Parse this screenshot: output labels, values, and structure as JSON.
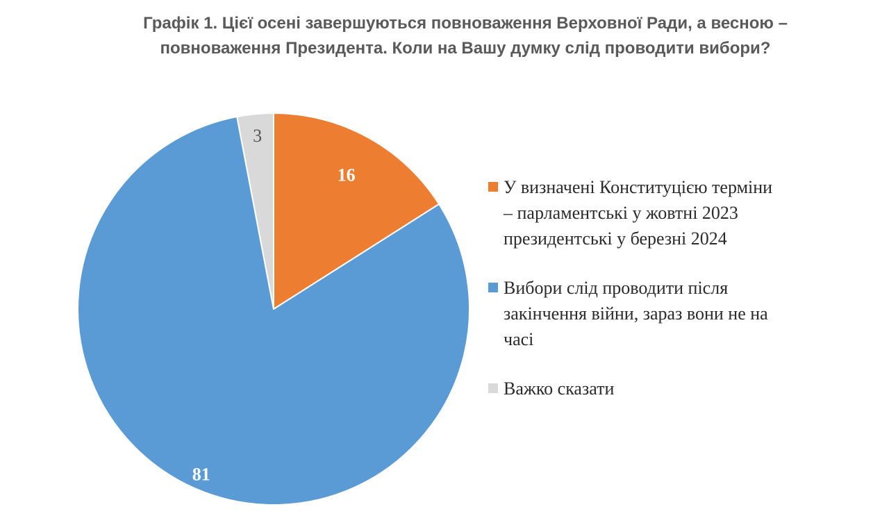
{
  "title": {
    "line1": "Графік 1. Цієї осені завершуються повноваження Верховної Ради, а весною –",
    "line2": "повноваження Президента. Коли на Вашу думку слід проводити вибори?"
  },
  "colors": {
    "orange": "#ED7D31",
    "blue": "#5B9BD5",
    "gray": "#D9D9D9"
  },
  "chart_data": {
    "type": "pie",
    "title": "Графік 1. Цієї осені завершуються повноваження Верховної Ради, а весною – повноваження Президента. Коли на Вашу думку слід проводити вибори?",
    "categories": [
      "У визначені Конституцією терміни – парламентські у жовтні 2023 президентські у березні 2024",
      "Вибори слід проводити після закінчення війни, зараз вони не на часі",
      "Важко сказати"
    ],
    "values": [
      16,
      81,
      3
    ],
    "data_labels": [
      "16",
      "81",
      "3"
    ],
    "colors": [
      "#ED7D31",
      "#5B9BD5",
      "#D9D9D9"
    ],
    "legend_position": "right"
  },
  "legend": [
    {
      "lines": [
        "У визначені Конституцією терміни",
        "– парламентські у жовтні 2023",
        "президентські у березні 2024"
      ],
      "color": "#ED7D31"
    },
    {
      "lines": [
        "Вибори слід проводити після",
        "закінчення війни, зараз вони не на",
        "часі"
      ],
      "color": "#5B9BD5"
    },
    {
      "lines": [
        "Важко сказати"
      ],
      "color": "#D9D9D9"
    }
  ]
}
